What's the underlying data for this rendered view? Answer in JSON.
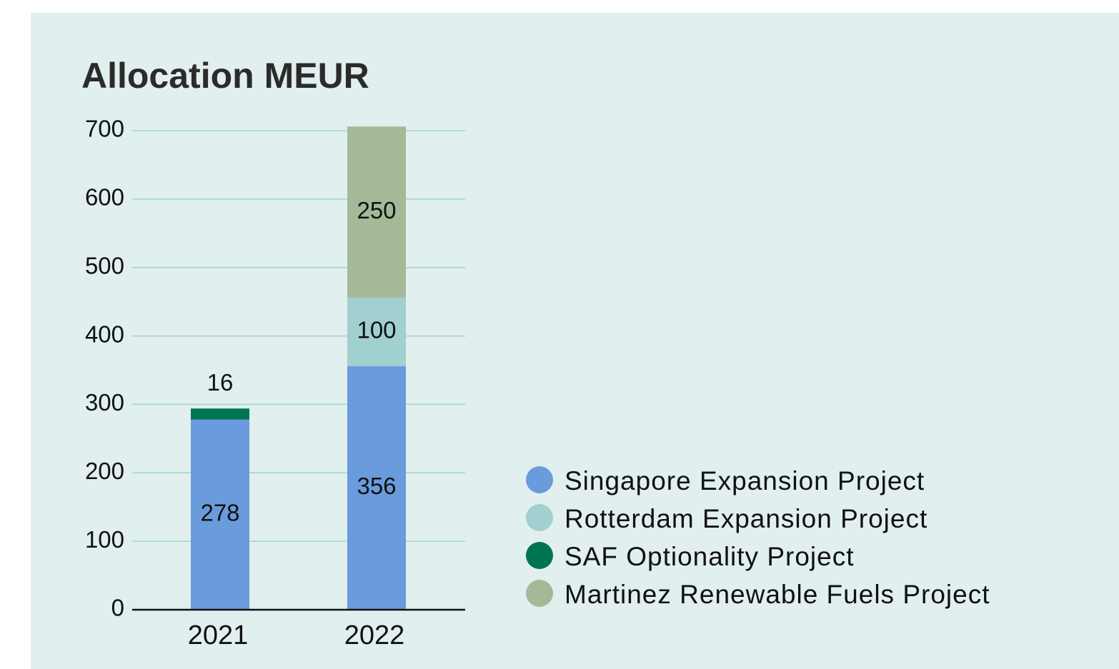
{
  "chart_data": {
    "type": "stacked-bar",
    "title": "Allocation MEUR",
    "categories": [
      "2021",
      "2022"
    ],
    "series": [
      {
        "name": "Singapore Expansion Project",
        "color": "#6a9bdc",
        "values": [
          278,
          356
        ]
      },
      {
        "name": "Rotterdam Expansion Project",
        "color": "#a2cfcf",
        "values": [
          null,
          100
        ]
      },
      {
        "name": "SAF Optionality Project",
        "color": "#007452",
        "values": [
          16,
          null
        ]
      },
      {
        "name": "Martinez Renewable Fuels Project",
        "color": "#a5b998",
        "values": [
          null,
          250
        ]
      }
    ],
    "ylim": [
      0,
      700
    ],
    "yticks": [
      0,
      100,
      200,
      300,
      400,
      500,
      600,
      700
    ],
    "grid": true,
    "legend": "right"
  }
}
